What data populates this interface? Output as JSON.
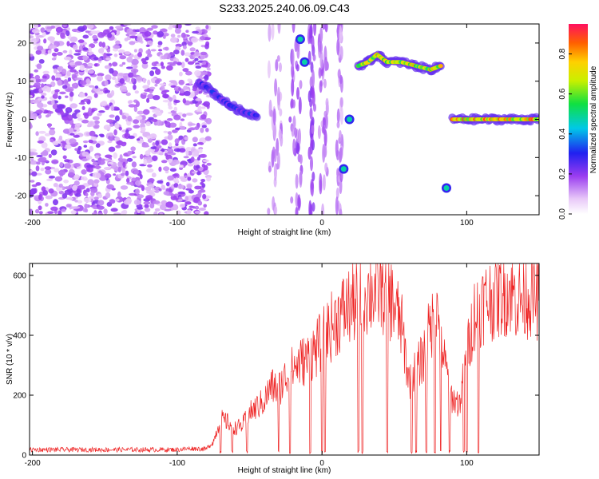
{
  "title": "S233.2025.240.06.09.C43",
  "chart_data": [
    {
      "type": "heatmap",
      "xlabel": "Height of straight line (km)",
      "ylabel": "Frequency (Hz)",
      "xlim": [
        -202,
        150
      ],
      "ylim": [
        -25,
        25
      ],
      "xticks": [
        -200,
        -100,
        0,
        100
      ],
      "yticks": [
        -20,
        -10,
        0,
        10,
        20
      ],
      "colorbar": {
        "label": "Normalized spectral amplitude",
        "range": [
          0,
          0.95
        ],
        "ticks": [
          0,
          0.2,
          0.4,
          0.6,
          0.8
        ],
        "tick_labels": [
          "0.0",
          "0.2",
          "0.4",
          "0.6",
          "0.8"
        ]
      },
      "features": [
        {
          "name": "noise-field",
          "x_range": [
            -202,
            -78
          ],
          "y_range": [
            -25,
            25
          ],
          "amplitude": 0.15
        },
        {
          "name": "descending-trace",
          "points": [
            [
              -85,
              10
            ],
            [
              -75,
              7
            ],
            [
              -65,
              4
            ],
            [
              -55,
              2
            ],
            [
              -45,
              1
            ]
          ],
          "amplitude": 0.35
        },
        {
          "name": "upper-trace",
          "points": [
            [
              25,
              14
            ],
            [
              32,
              15
            ],
            [
              38,
              17
            ],
            [
              45,
              15
            ],
            [
              55,
              15
            ],
            [
              65,
              14
            ],
            [
              75,
              13
            ],
            [
              82,
              14
            ]
          ],
          "amplitude": 0.85
        },
        {
          "name": "zero-line",
          "points": [
            [
              90,
              0
            ],
            [
              100,
              0
            ],
            [
              110,
              0
            ],
            [
              120,
              0
            ],
            [
              130,
              0
            ],
            [
              140,
              0
            ],
            [
              150,
              0
            ]
          ],
          "amplitude": 0.95
        },
        {
          "name": "blob",
          "points": [
            [
              -15,
              21
            ],
            [
              -12,
              15
            ],
            [
              15,
              -13
            ],
            [
              19,
              0
            ],
            [
              86,
              -18
            ]
          ],
          "amplitude": 0.5
        }
      ]
    },
    {
      "type": "line",
      "xlabel": "Height of straight line (km)",
      "ylabel": "SNR (10 * v/v)",
      "xlim": [
        -202,
        150
      ],
      "ylim": [
        0,
        640
      ],
      "xticks": [
        -200,
        -100,
        0,
        100
      ],
      "yticks": [
        0,
        200,
        400,
        600
      ],
      "series": [
        {
          "name": "SNR",
          "color": "#ee2222",
          "x": [
            -202,
            -180,
            -160,
            -140,
            -120,
            -100,
            -90,
            -80,
            -75,
            -70,
            -65,
            -60,
            -55,
            -50,
            -45,
            -40,
            -35,
            -30,
            -25,
            -20,
            -15,
            -10,
            -5,
            0,
            5,
            10,
            15,
            20,
            25,
            30,
            35,
            40,
            45,
            50,
            55,
            60,
            65,
            70,
            75,
            80,
            85,
            90,
            95,
            100,
            105,
            110,
            115,
            120,
            125,
            130,
            135,
            140,
            145,
            150
          ],
          "values": [
            18,
            18,
            18,
            18,
            18,
            18,
            22,
            20,
            45,
            120,
            110,
            90,
            100,
            140,
            160,
            180,
            230,
            220,
            260,
            290,
            310,
            320,
            350,
            380,
            420,
            450,
            480,
            500,
            520,
            540,
            545,
            560,
            540,
            500,
            430,
            250,
            280,
            330,
            430,
            470,
            300,
            190,
            170,
            330,
            470,
            500,
            520,
            530,
            540,
            550,
            520,
            530,
            540,
            520
          ]
        }
      ],
      "dips": [
        -70,
        -62,
        -52,
        -30,
        -22,
        -8,
        0,
        2,
        25,
        28,
        45,
        62,
        65,
        72,
        78,
        82,
        88,
        98,
        100,
        108
      ]
    }
  ]
}
